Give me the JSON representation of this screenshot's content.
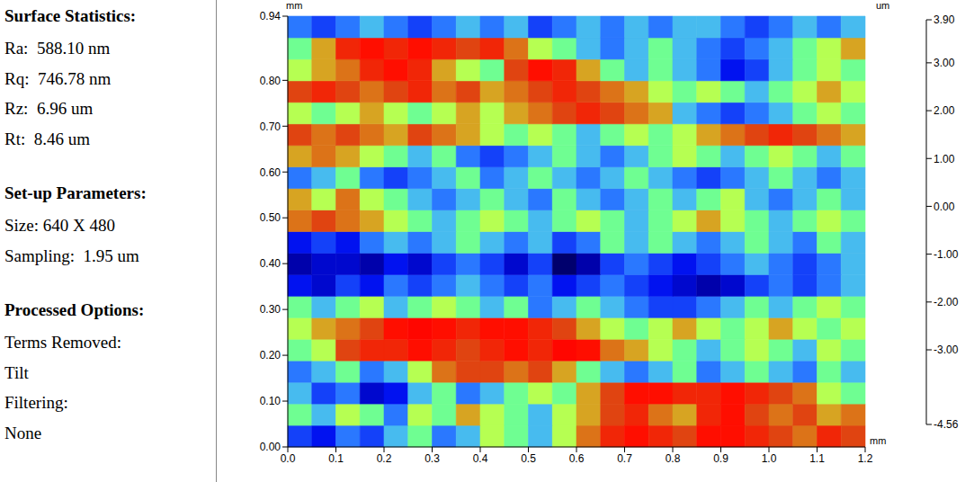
{
  "panel": [
    {
      "heading": "Surface Statistics:",
      "lines": [
        "Ra:  588.10 nm",
        "Rq:  746.78 nm",
        "Rz:  6.96 um",
        "Rt:  8.46 um"
      ]
    },
    {
      "heading": "Set-up Parameters:",
      "lines": [
        "Size: 640 X 480",
        "Sampling:  1.95 um"
      ]
    },
    {
      "heading": "Processed Options:",
      "lines": [
        "Terms Removed:",
        "Tilt",
        "Filtering:",
        "None"
      ]
    }
  ],
  "chart_data": {
    "type": "heatmap",
    "xlabel": "mm",
    "ylabel": "mm",
    "xlim": [
      0,
      1.2
    ],
    "xticks": [
      {
        "value": 0,
        "label": "0.0"
      },
      0.1,
      0.2,
      0.3,
      0.4,
      0.5,
      0.6,
      0.7,
      0.8,
      0.9,
      {
        "value": 1,
        "label": "1.0"
      },
      1.1,
      1.2
    ],
    "ylim": [
      0,
      0.94
    ],
    "yticks": [
      {
        "value": 0,
        "label": "0.00"
      },
      {
        "value": 0.1,
        "label": "0.10"
      },
      {
        "value": 0.2,
        "label": "0.20"
      },
      {
        "value": 0.3,
        "label": "0.30"
      },
      {
        "value": 0.4,
        "label": "0.40"
      },
      {
        "value": 0.5,
        "label": "0.50"
      },
      {
        "value": 0.6,
        "label": "0.60"
      },
      {
        "value": 0.7,
        "label": "0.70"
      },
      {
        "value": 0.8,
        "label": "0.80"
      },
      0.94
    ],
    "x_edges": [
      0,
      0.05,
      0.1,
      0.15,
      0.2,
      0.25,
      0.3,
      0.35,
      0.4,
      0.45,
      0.5,
      0.55,
      0.6,
      0.65,
      0.7,
      0.75,
      0.8,
      0.85,
      0.9,
      0.95,
      1.0,
      1.05,
      1.1,
      1.15,
      1.2
    ],
    "y_edges": [
      0,
      0.047,
      0.094,
      0.141,
      0.188,
      0.235,
      0.282,
      0.329,
      0.376,
      0.423,
      0.47,
      0.517,
      0.564,
      0.611,
      0.658,
      0.705,
      0.752,
      0.799,
      0.846,
      0.893,
      0.94
    ],
    "cells": [
      [
        -1.5,
        -2.0,
        -1.0,
        -1.5,
        -0.5,
        0.0,
        -1.0,
        -0.5,
        0.5,
        0.0,
        -0.5,
        0.5,
        1.5,
        2.5,
        3.0,
        2.5,
        2.0,
        3.0,
        3.0,
        2.5,
        2.0,
        1.5,
        2.5,
        2.0
      ],
      [
        0.0,
        -0.5,
        0.5,
        0.0,
        -1.0,
        0.5,
        0.0,
        1.0,
        0.5,
        0.0,
        -0.5,
        0.5,
        1.0,
        2.0,
        2.5,
        1.5,
        1.0,
        2.5,
        3.0,
        2.0,
        1.5,
        2.0,
        1.0,
        1.5
      ],
      [
        -0.5,
        -1.5,
        -1.0,
        -2.5,
        -2.0,
        -0.5,
        0.0,
        -1.0,
        -0.5,
        0.0,
        0.5,
        0.0,
        1.0,
        2.0,
        3.0,
        3.0,
        2.5,
        2.5,
        3.0,
        2.5,
        2.0,
        1.5,
        0.5,
        0.0
      ],
      [
        -1.0,
        -0.5,
        0.0,
        -1.0,
        -0.5,
        0.5,
        1.5,
        2.0,
        2.0,
        1.5,
        2.0,
        1.0,
        0.0,
        -0.5,
        -1.0,
        -0.5,
        0.0,
        -1.0,
        -0.5,
        0.0,
        -0.5,
        -1.0,
        0.0,
        -0.5
      ],
      [
        0.0,
        0.5,
        2.0,
        2.5,
        2.5,
        3.0,
        2.5,
        2.0,
        2.5,
        3.0,
        2.5,
        3.5,
        3.0,
        1.5,
        1.0,
        0.5,
        0.0,
        -0.5,
        0.0,
        0.5,
        0.0,
        -0.5,
        0.5,
        0.0
      ],
      [
        0.5,
        1.0,
        1.5,
        2.0,
        3.0,
        3.5,
        3.0,
        2.5,
        3.0,
        3.0,
        2.5,
        2.0,
        1.0,
        0.5,
        0.0,
        0.5,
        1.0,
        0.5,
        0.0,
        0.5,
        1.0,
        0.5,
        0.0,
        0.5
      ],
      [
        0.0,
        -0.5,
        0.0,
        0.5,
        -0.5,
        0.0,
        0.5,
        0.0,
        -0.5,
        0.0,
        -1.0,
        -0.5,
        0.0,
        -0.5,
        -1.0,
        -1.5,
        -1.5,
        -1.0,
        -0.5,
        0.0,
        -0.5,
        0.0,
        0.5,
        0.0
      ],
      [
        -2.0,
        -2.5,
        -1.5,
        -2.0,
        -1.0,
        -1.5,
        -1.0,
        -0.5,
        -1.0,
        -1.5,
        -1.0,
        -2.0,
        -1.5,
        -1.0,
        -1.5,
        -2.0,
        -2.5,
        -3.0,
        -2.5,
        -1.5,
        -1.0,
        -1.5,
        -1.0,
        -0.5
      ],
      [
        -3.0,
        -2.5,
        -2.5,
        -3.0,
        -2.0,
        -2.5,
        -1.5,
        -1.0,
        -1.5,
        -2.5,
        -1.5,
        -4.0,
        -3.0,
        -1.5,
        -1.0,
        -1.5,
        -2.0,
        -1.5,
        -1.0,
        -0.5,
        -1.0,
        -1.5,
        -1.0,
        -0.5
      ],
      [
        -2.0,
        -1.5,
        -2.0,
        -1.0,
        -0.5,
        -1.0,
        -0.5,
        0.0,
        -0.5,
        -1.0,
        -0.5,
        -1.5,
        -1.0,
        0.0,
        -0.5,
        0.0,
        -0.5,
        -1.0,
        -0.5,
        0.0,
        -0.5,
        -1.0,
        0.0,
        -0.5
      ],
      [
        1.5,
        2.0,
        1.5,
        1.0,
        0.5,
        0.0,
        -0.5,
        0.0,
        0.5,
        0.0,
        -0.5,
        0.0,
        0.5,
        0.0,
        -0.5,
        0.0,
        0.5,
        1.0,
        0.5,
        0.0,
        -0.5,
        0.0,
        0.5,
        0.0
      ],
      [
        1.0,
        0.5,
        1.5,
        0.5,
        0.0,
        -0.5,
        -1.0,
        -0.5,
        0.0,
        -0.5,
        -1.0,
        0.0,
        -0.5,
        -1.0,
        -0.5,
        0.0,
        -0.5,
        0.0,
        0.5,
        -0.5,
        -1.0,
        -0.5,
        0.0,
        -0.5
      ],
      [
        -1.0,
        -0.5,
        0.0,
        -1.0,
        -1.5,
        -1.0,
        -0.5,
        0.0,
        -1.0,
        -0.5,
        0.0,
        -0.5,
        -1.0,
        -0.5,
        0.0,
        -0.5,
        -1.0,
        -1.5,
        -1.0,
        -0.5,
        0.0,
        -0.5,
        -1.0,
        -0.5
      ],
      [
        1.0,
        1.5,
        1.0,
        0.5,
        0.0,
        -0.5,
        0.0,
        -1.0,
        -1.5,
        -1.0,
        -0.5,
        0.0,
        -0.5,
        -1.0,
        -0.5,
        0.0,
        0.5,
        0.0,
        -0.5,
        0.0,
        0.5,
        0.0,
        -0.5,
        0.0
      ],
      [
        2.0,
        1.5,
        2.0,
        1.5,
        1.0,
        2.0,
        1.5,
        1.0,
        0.5,
        0.0,
        0.5,
        0.0,
        -0.5,
        0.0,
        0.5,
        0.0,
        0.5,
        1.0,
        1.5,
        2.0,
        2.5,
        2.0,
        1.5,
        1.0
      ],
      [
        0.5,
        0.0,
        0.5,
        1.0,
        0.5,
        0.0,
        0.5,
        1.0,
        0.5,
        1.0,
        1.5,
        2.0,
        2.5,
        2.0,
        1.5,
        1.0,
        -0.5,
        -1.0,
        -1.5,
        -1.0,
        -0.5,
        0.0,
        0.5,
        0.0
      ],
      [
        2.0,
        2.5,
        2.0,
        1.5,
        2.0,
        2.5,
        1.5,
        2.0,
        1.0,
        1.5,
        2.0,
        2.5,
        2.0,
        1.5,
        1.0,
        0.5,
        0.0,
        0.5,
        0.0,
        -0.5,
        0.0,
        0.5,
        1.0,
        0.5
      ],
      [
        0.5,
        1.0,
        1.5,
        2.5,
        3.0,
        2.5,
        1.0,
        0.5,
        0.0,
        2.0,
        3.0,
        2.5,
        1.0,
        0.0,
        -0.5,
        0.0,
        -0.5,
        -1.0,
        -2.0,
        -1.5,
        -0.5,
        0.0,
        0.5,
        0.0
      ],
      [
        0.0,
        1.0,
        2.5,
        3.0,
        2.5,
        3.0,
        2.5,
        2.0,
        2.5,
        1.5,
        0.5,
        0.0,
        -0.5,
        -1.0,
        -0.5,
        0.0,
        -0.5,
        -1.0,
        -1.5,
        -1.0,
        -0.5,
        0.0,
        0.5,
        1.0
      ],
      [
        -1.0,
        -1.5,
        -1.0,
        -0.5,
        -1.0,
        -1.5,
        -1.0,
        -0.5,
        -1.0,
        -0.5,
        -1.5,
        -1.0,
        -0.5,
        -1.0,
        -0.5,
        -1.0,
        -0.5,
        -0.5,
        -1.0,
        -1.5,
        -1.0,
        -0.5,
        -1.0,
        -0.5
      ]
    ],
    "colorbar": {
      "label": "um",
      "range": [
        -4.56,
        3.9
      ],
      "ticks": [
        {
          "value": 3.9,
          "label": "3.90"
        },
        {
          "value": 3,
          "label": "3.00"
        },
        {
          "value": 2,
          "label": "2.00"
        },
        {
          "value": 1,
          "label": "1.00"
        },
        {
          "value": 0,
          "label": "0.00"
        },
        {
          "value": -1,
          "label": "-1.00"
        },
        {
          "value": -2,
          "label": "-2.00"
        },
        {
          "value": -3,
          "label": "-3.00"
        },
        {
          "value": -4.56,
          "label": "-4.56"
        }
      ]
    }
  }
}
